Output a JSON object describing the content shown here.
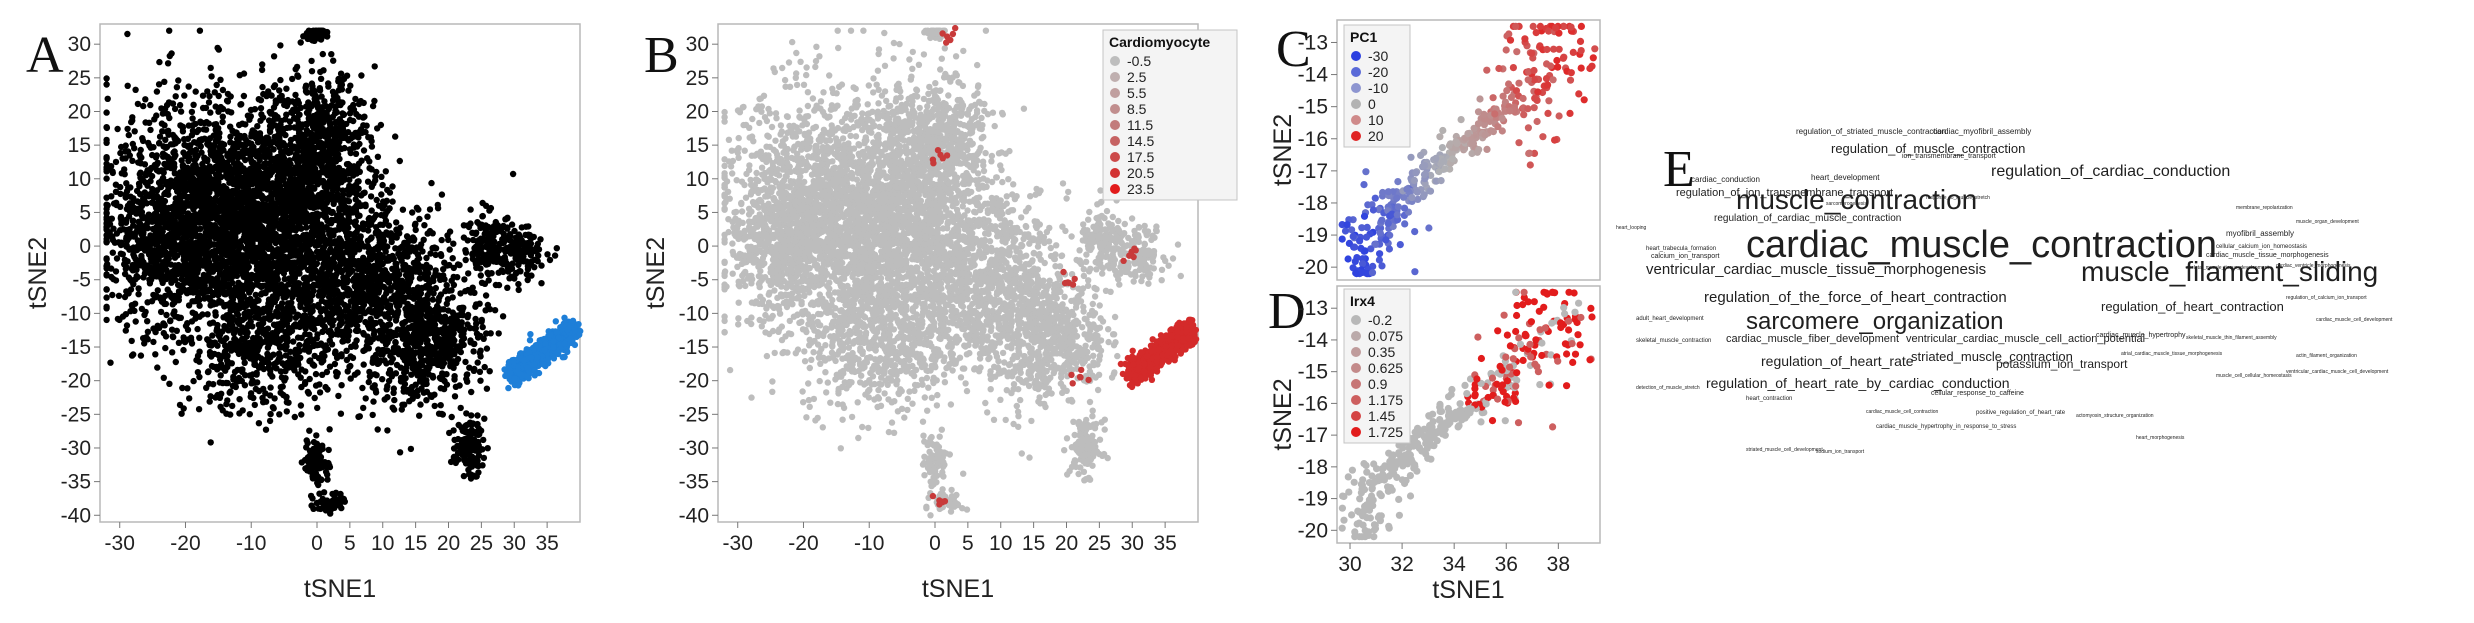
{
  "panel_labels": {
    "A": "A",
    "B": "B",
    "C": "C",
    "D": "D",
    "E": "E"
  },
  "chart_data": [
    {
      "panel": "A",
      "type": "scatter",
      "xlabel": "tSNE1",
      "ylabel": "tSNE2",
      "xlim": [
        -33,
        40
      ],
      "ylim": [
        -41,
        33
      ],
      "xticks": [
        -30,
        -20,
        -10,
        0,
        5,
        10,
        15,
        20,
        25,
        30,
        35
      ],
      "yticks": [
        30,
        25,
        20,
        15,
        10,
        5,
        0,
        -5,
        -10,
        -15,
        -20,
        -25,
        -30,
        -35,
        -40
      ],
      "colors": {
        "cells": "#000000",
        "highlight": "#1e7fd8"
      },
      "clusters": [
        {
          "x": -11,
          "y": 3,
          "sx": 9,
          "sy": 8,
          "n": 2200,
          "c": "cells"
        },
        {
          "x": -20,
          "y": 5,
          "sx": 6,
          "sy": 9,
          "n": 700,
          "c": "cells"
        },
        {
          "x": -3,
          "y": 12,
          "sx": 5,
          "sy": 7,
          "n": 600,
          "c": "cells"
        },
        {
          "x": 2,
          "y": 16,
          "sx": 3,
          "sy": 4,
          "n": 250,
          "c": "cells"
        },
        {
          "x": 6,
          "y": -5,
          "sx": 7,
          "sy": 6,
          "n": 900,
          "c": "cells"
        },
        {
          "x": -8,
          "y": -15,
          "sx": 6,
          "sy": 5,
          "n": 500,
          "c": "cells"
        },
        {
          "x": 14,
          "y": -13,
          "sx": 4,
          "sy": 6,
          "n": 400,
          "c": "cells"
        },
        {
          "x": 20,
          "y": -14,
          "sx": 3,
          "sy": 4,
          "n": 250,
          "c": "cells"
        },
        {
          "x": 26,
          "y": 0,
          "sx": 2,
          "sy": 2.5,
          "n": 160,
          "c": "cells"
        },
        {
          "x": 31,
          "y": -1,
          "sx": 2,
          "sy": 2,
          "n": 120,
          "c": "cells"
        },
        {
          "x": 23,
          "y": -30,
          "sx": 1.2,
          "sy": 2,
          "n": 120,
          "c": "cells"
        },
        {
          "x": 0,
          "y": 31.5,
          "sx": 0.7,
          "sy": 0.6,
          "n": 40,
          "c": "cells"
        },
        {
          "x": 0,
          "y": -32,
          "sx": 1,
          "sy": 2,
          "n": 80,
          "c": "cells"
        },
        {
          "x": 2,
          "y": -38,
          "sx": 1.2,
          "sy": 0.8,
          "n": 50,
          "c": "cells"
        },
        {
          "x": -24,
          "y": 0,
          "sx": 3,
          "sy": 3,
          "n": 200,
          "c": "cells"
        }
      ],
      "highlight_x": [
        29.5,
        39
      ],
      "highlight_y": [
        -19,
        -12.5
      ]
    },
    {
      "panel": "B",
      "type": "scatter",
      "xlabel": "tSNE1",
      "ylabel": "tSNE2",
      "xlim": [
        -33,
        40
      ],
      "ylim": [
        -41,
        33
      ],
      "xticks": [
        -30,
        -20,
        -10,
        0,
        5,
        10,
        15,
        20,
        25,
        30,
        35
      ],
      "yticks": [
        30,
        25,
        20,
        15,
        10,
        5,
        0,
        -5,
        -10,
        -15,
        -20,
        -25,
        -30,
        -35,
        -40
      ],
      "legend": {
        "title": "Cardiomyocyte",
        "entries": [
          "-0.5",
          "2.5",
          "5.5",
          "8.5",
          "11.5",
          "14.5",
          "17.5",
          "20.5",
          "23.5"
        ],
        "colors": [
          "#bdbdbd",
          "#bfafaf",
          "#c09f9f",
          "#c18e8e",
          "#c27c7c",
          "#c66262",
          "#cc4a4a",
          "#d23333",
          "#e21b1b"
        ]
      },
      "colors": {
        "base": "#bdbdbd",
        "high": "#d42a2a"
      },
      "clusters": [
        {
          "x": -11,
          "y": 3,
          "sx": 9,
          "sy": 8,
          "n": 2200
        },
        {
          "x": -20,
          "y": 5,
          "sx": 6,
          "sy": 9,
          "n": 700
        },
        {
          "x": -3,
          "y": 12,
          "sx": 5,
          "sy": 7,
          "n": 600
        },
        {
          "x": 2,
          "y": 16,
          "sx": 3,
          "sy": 4,
          "n": 250
        },
        {
          "x": 6,
          "y": -5,
          "sx": 7,
          "sy": 6,
          "n": 900
        },
        {
          "x": -8,
          "y": -15,
          "sx": 6,
          "sy": 5,
          "n": 500
        },
        {
          "x": 14,
          "y": -13,
          "sx": 4,
          "sy": 6,
          "n": 400
        },
        {
          "x": 20,
          "y": -14,
          "sx": 3,
          "sy": 4,
          "n": 250
        },
        {
          "x": 26,
          "y": 0,
          "sx": 2,
          "sy": 2.5,
          "n": 160
        },
        {
          "x": 31,
          "y": -1,
          "sx": 2,
          "sy": 2,
          "n": 120
        },
        {
          "x": 23,
          "y": -30,
          "sx": 1.2,
          "sy": 2,
          "n": 120
        },
        {
          "x": 0,
          "y": 31.5,
          "sx": 0.7,
          "sy": 0.6,
          "n": 40
        },
        {
          "x": 0,
          "y": -32,
          "sx": 1,
          "sy": 2,
          "n": 80
        },
        {
          "x": 2,
          "y": -38,
          "sx": 1.2,
          "sy": 0.8,
          "n": 50
        },
        {
          "x": -24,
          "y": 0,
          "sx": 3,
          "sy": 3,
          "n": 200
        }
      ],
      "highlight_x": [
        29.5,
        39
      ],
      "highlight_y": [
        -19,
        -12.5
      ],
      "red_spots": [
        [
          1,
          13
        ],
        [
          1,
          -38
        ],
        [
          22,
          -19
        ],
        [
          20,
          -5
        ],
        [
          30,
          -1
        ],
        [
          2,
          31
        ]
      ]
    },
    {
      "panel": "C",
      "type": "scatter",
      "xlabel": "",
      "ylabel": "tSNE2",
      "xlim": [
        29.5,
        39.6
      ],
      "ylim": [
        -20.4,
        -12.3
      ],
      "yticks": [
        -13,
        -14,
        -15,
        -16,
        -17,
        -18,
        -19,
        -20
      ],
      "legend": {
        "title": "PC1",
        "entries": [
          "-30",
          "-20",
          "-10",
          "0",
          "10",
          "20"
        ],
        "colors": [
          "#2b3fe0",
          "#5a6ad8",
          "#8d95d0",
          "#b3b3b3",
          "#cf8a8a",
          "#e02424"
        ]
      },
      "trajectory": [
        [
          30.2,
          -19.8
        ],
        [
          30.8,
          -19.2
        ],
        [
          31.5,
          -18.2
        ],
        [
          32.3,
          -17.5
        ],
        [
          33.3,
          -16.8
        ],
        [
          34.3,
          -16.2
        ],
        [
          35.3,
          -15.6
        ],
        [
          36.4,
          -15.0
        ],
        [
          37.0,
          -14.2
        ],
        [
          37.8,
          -13.5
        ],
        [
          38.5,
          -12.8
        ]
      ]
    },
    {
      "panel": "D",
      "type": "scatter",
      "xlabel": "tSNE1",
      "ylabel": "tSNE2",
      "xlim": [
        29.5,
        39.6
      ],
      "ylim": [
        -20.4,
        -12.3
      ],
      "xticks": [
        30,
        32,
        34,
        36,
        38
      ],
      "yticks": [
        -13,
        -14,
        -15,
        -16,
        -17,
        -18,
        -19,
        -20
      ],
      "legend": {
        "title": "Irx4",
        "entries": [
          "-0.2",
          "0.075",
          "0.35",
          "0.625",
          "0.9",
          "1.175",
          "1.45",
          "1.725"
        ],
        "colors": [
          "#b8b8b8",
          "#bbaaaa",
          "#bf9b9b",
          "#c38a8a",
          "#c77676",
          "#cd5f5f",
          "#d44444",
          "#e21c1c"
        ]
      },
      "trajectory": [
        [
          30.2,
          -19.8
        ],
        [
          30.8,
          -19.2
        ],
        [
          31.5,
          -18.2
        ],
        [
          32.3,
          -17.5
        ],
        [
          33.3,
          -16.8
        ],
        [
          34.3,
          -16.2
        ],
        [
          35.3,
          -15.6
        ],
        [
          36.4,
          -15.0
        ],
        [
          37.0,
          -14.2
        ],
        [
          37.8,
          -13.5
        ],
        [
          38.5,
          -12.8
        ]
      ]
    },
    {
      "panel": "E",
      "type": "wordcloud",
      "words": [
        {
          "text": "cardiac_muscle_contraction",
          "size": 38
        },
        {
          "text": "muscle_contraction",
          "size": 28
        },
        {
          "text": "muscle_filament_sliding",
          "size": 28
        },
        {
          "text": "sarcomere_organization",
          "size": 24
        },
        {
          "text": "regulation_of_cardiac_conduction",
          "size": 16
        },
        {
          "text": "regulation_of_muscle_contraction",
          "size": 13
        },
        {
          "text": "ventricular_cardiac_muscle_tissue_morphogenesis",
          "size": 15
        },
        {
          "text": "regulation_of_the_force_of_heart_contraction",
          "size": 15
        },
        {
          "text": "regulation_of_heart_contraction",
          "size": 13
        },
        {
          "text": "regulation_of_heart_rate",
          "size": 14
        },
        {
          "text": "regulation_of_heart_rate_by_cardiac_conduction",
          "size": 14
        },
        {
          "text": "striated_muscle_contraction",
          "size": 13
        },
        {
          "text": "potassium_ion_transport",
          "size": 12
        },
        {
          "text": "regulation_of_ion_transmembrane_transport",
          "size": 11
        },
        {
          "text": "regulation_of_cardiac_muscle_contraction",
          "size": 10
        },
        {
          "text": "ventricular_cardiac_muscle_cell_action_potential",
          "size": 11
        },
        {
          "text": "cardiac_muscle_fiber_development",
          "size": 11
        },
        {
          "text": "regulation_of_striated_muscle_contraction",
          "size": 8
        },
        {
          "text": "cardiac_myofibril_assembly",
          "size": 8
        },
        {
          "text": "cardiac_conduction",
          "size": 8
        },
        {
          "text": "heart_development",
          "size": 8
        },
        {
          "text": "ion_transmembrane_transport",
          "size": 7
        },
        {
          "text": "myofibril_assembly",
          "size": 8
        },
        {
          "text": "cardiac_muscle_tissue_morphogenesis",
          "size": 7
        },
        {
          "text": "heart_trabecula_formation",
          "size": 6
        },
        {
          "text": "calcium_ion_transport",
          "size": 7
        },
        {
          "text": "cardiac_muscle_hypertrophy",
          "size": 7
        },
        {
          "text": "cellular_response_to_caffeine",
          "size": 7
        },
        {
          "text": "positive_regulation_of_heart_rate",
          "size": 6
        },
        {
          "text": "cardiac_muscle_hypertrophy_in_response_to_stress",
          "size": 6
        },
        {
          "text": "adult_heart_development",
          "size": 6
        },
        {
          "text": "skeletal_muscle_contraction",
          "size": 6
        },
        {
          "text": "heart_contraction",
          "size": 6
        },
        {
          "text": "detection_of_muscle_stretch",
          "size": 5
        },
        {
          "text": "cellular_calcium_ion_homeostasis",
          "size": 6
        },
        {
          "text": "skeletal_muscle_tissue_development",
          "size": 5
        },
        {
          "text": "skeletal_muscle_thin_filament_assembly",
          "size": 5
        },
        {
          "text": "atrial_cardiac_muscle_tissue_morphogenesis",
          "size": 5
        },
        {
          "text": "response_to_muscle_stretch",
          "size": 5
        },
        {
          "text": "membrane_repolarization",
          "size": 5
        },
        {
          "text": "muscle_organ_development",
          "size": 5
        },
        {
          "text": "cardiac_ventricle_morphogenesis",
          "size": 5
        },
        {
          "text": "regulation_of_calcium_ion_transport",
          "size": 5
        },
        {
          "text": "cardiac_muscle_cell_development",
          "size": 5
        },
        {
          "text": "sarcomerogenesis",
          "size": 5
        },
        {
          "text": "heart_looping",
          "size": 5
        },
        {
          "text": "actin_filament_organization",
          "size": 5
        },
        {
          "text": "ventricular_cardiac_muscle_cell_development",
          "size": 5
        },
        {
          "text": "cardiac_muscle_cell_contraction",
          "size": 5
        },
        {
          "text": "muscle_cell_cellular_homeostasis",
          "size": 5
        },
        {
          "text": "striated_muscle_cell_development",
          "size": 5
        },
        {
          "text": "actomyosin_structure_organization",
          "size": 5
        },
        {
          "text": "heart_morphogenesis",
          "size": 5
        },
        {
          "text": "sodium_ion_transport",
          "size": 5
        }
      ]
    }
  ]
}
